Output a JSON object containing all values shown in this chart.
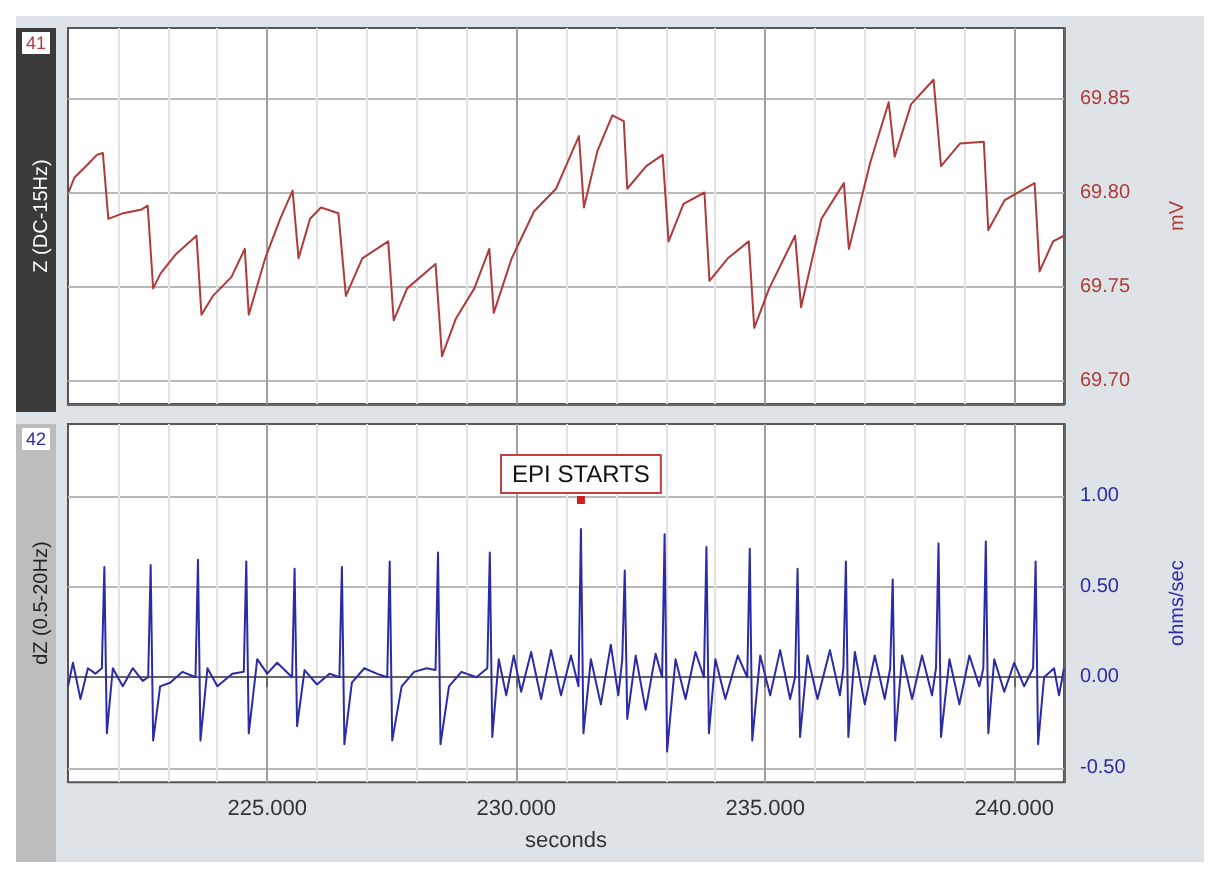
{
  "chart_data": [
    {
      "type": "line",
      "ylabel": "Z (DC-15Hz)",
      "y2label": "mV",
      "annotations": [
        "41"
      ],
      "tick_labels": "y",
      "grid": true,
      "marker": "none",
      "line_style": "solid",
      "xlim": [
        221,
        241
      ],
      "xticks": [
        {
          "value": 222,
          "label": null
        },
        {
          "value": 223,
          "label": null
        },
        {
          "value": 224,
          "label": null
        },
        225,
        {
          "value": 226,
          "label": null
        },
        {
          "value": 227,
          "label": null
        },
        {
          "value": 228,
          "label": null
        },
        {
          "value": 229,
          "label": null
        },
        230,
        {
          "value": 231,
          "label": null
        },
        {
          "value": 232,
          "label": null
        },
        {
          "value": 233,
          "label": null
        },
        {
          "value": 234,
          "label": null
        },
        235,
        {
          "value": 236,
          "label": null
        },
        {
          "value": 237,
          "label": null
        },
        {
          "value": 238,
          "label": null
        },
        {
          "value": 239,
          "label": null
        },
        240
      ],
      "ylim": [
        69.6875,
        69.8875
      ],
      "yticks": [
        {
          "value": 69.7,
          "label": "69.70"
        },
        {
          "value": 69.75,
          "label": "69.75"
        },
        {
          "value": 69.8,
          "label": "69.80"
        },
        {
          "value": 69.85,
          "label": "69.85"
        }
      ],
      "series": [
        {
          "color": "#b03a3a",
          "x": [
            221.01,
            221.13,
            221.36,
            221.58,
            221.7,
            221.81,
            222.11,
            222.48,
            222.6,
            222.71,
            222.86,
            223.16,
            223.58,
            223.68,
            223.91,
            224.28,
            224.55,
            224.63,
            224.96,
            225.26,
            225.51,
            225.63,
            225.86,
            226.08,
            226.43,
            226.58,
            226.91,
            227.43,
            227.54,
            227.81,
            228.38,
            228.51,
            228.79,
            229.16,
            229.46,
            229.55,
            229.91,
            230.36,
            230.8,
            231.03,
            231.26,
            231.36,
            231.63,
            231.93,
            232.16,
            232.23,
            232.61,
            232.94,
            233.06,
            233.36,
            233.78,
            233.88,
            234.25,
            234.67,
            234.78,
            235.08,
            235.6,
            235.72,
            236.13,
            236.58,
            236.68,
            237.11,
            237.48,
            237.6,
            237.93,
            238.38,
            238.53,
            238.91,
            239.39,
            239.48,
            239.81,
            240.41,
            240.51,
            240.78,
            241.0
          ],
          "values": [
            69.8,
            69.808,
            69.814,
            69.82,
            69.821,
            69.786,
            69.789,
            69.791,
            69.793,
            69.749,
            69.757,
            69.767,
            69.777,
            69.735,
            69.745,
            69.755,
            69.77,
            69.735,
            69.765,
            69.786,
            69.801,
            69.765,
            69.786,
            69.792,
            69.789,
            69.745,
            69.765,
            69.774,
            69.732,
            69.749,
            69.762,
            69.713,
            69.733,
            69.749,
            69.77,
            69.736,
            69.765,
            69.79,
            69.802,
            69.816,
            69.83,
            69.792,
            69.822,
            69.841,
            69.838,
            69.802,
            69.814,
            69.82,
            69.774,
            69.794,
            69.8,
            69.753,
            69.765,
            69.774,
            69.728,
            69.749,
            69.777,
            69.739,
            69.786,
            69.805,
            69.77,
            69.816,
            69.848,
            69.819,
            69.847,
            69.86,
            69.814,
            69.826,
            69.827,
            69.78,
            69.796,
            69.805,
            69.758,
            69.774,
            69.777
          ]
        }
      ]
    },
    {
      "type": "line",
      "ylabel": "dZ (0.5-20Hz)",
      "y2label": "ohms/sec",
      "xlabel": "seconds",
      "annotations": [
        "42",
        {
          "text": "EPI STARTS",
          "x": 231.3,
          "y": 0.98
        }
      ],
      "grid": true,
      "marker": "none",
      "line_style": "solid",
      "xlim": [
        221,
        241
      ],
      "xticks": [
        {
          "value": 222,
          "label": null
        },
        {
          "value": 223,
          "label": null
        },
        {
          "value": 224,
          "label": null
        },
        {
          "value": 225,
          "label": "225.000"
        },
        {
          "value": 226,
          "label": null
        },
        {
          "value": 227,
          "label": null
        },
        {
          "value": 228,
          "label": null
        },
        {
          "value": 229,
          "label": null
        },
        {
          "value": 230,
          "label": "230.000"
        },
        {
          "value": 231,
          "label": null
        },
        {
          "value": 232,
          "label": null
        },
        {
          "value": 233,
          "label": null
        },
        {
          "value": 234,
          "label": null
        },
        {
          "value": 235,
          "label": "235.000"
        },
        {
          "value": 236,
          "label": null
        },
        {
          "value": 237,
          "label": null
        },
        {
          "value": 238,
          "label": null
        },
        {
          "value": 239,
          "label": null
        },
        {
          "value": 240,
          "label": "240.000"
        }
      ],
      "ylim": [
        -0.58,
        1.4
      ],
      "yticks": [
        {
          "value": -0.5,
          "label": "-0.50"
        },
        {
          "value": 0,
          "label": "0.00"
        },
        {
          "value": 0.5,
          "label": "0.50"
        },
        {
          "value": 1,
          "label": "1.00"
        }
      ],
      "series": [
        {
          "color": "#2b2ba8",
          "x": [
            221.0,
            221.1,
            221.25,
            221.4,
            221.55,
            221.68,
            221.73,
            221.78,
            221.9,
            222.1,
            222.3,
            222.5,
            222.61,
            222.66,
            222.71,
            222.85,
            223.05,
            223.3,
            223.56,
            223.61,
            223.66,
            223.8,
            224.0,
            224.3,
            224.53,
            224.58,
            224.63,
            224.8,
            225.0,
            225.2,
            225.5,
            225.55,
            225.6,
            225.75,
            226.0,
            226.25,
            226.45,
            226.5,
            226.55,
            226.7,
            226.95,
            227.2,
            227.41,
            227.46,
            227.51,
            227.7,
            227.95,
            228.2,
            228.38,
            228.43,
            228.48,
            228.65,
            228.9,
            229.2,
            229.42,
            229.47,
            229.52,
            229.65,
            229.8,
            229.95,
            230.1,
            230.3,
            230.5,
            230.7,
            230.9,
            231.1,
            231.25,
            231.3,
            231.35,
            231.5,
            231.7,
            231.9,
            232.05,
            232.13,
            232.18,
            232.23,
            232.4,
            232.6,
            232.8,
            232.93,
            232.98,
            233.03,
            233.2,
            233.4,
            233.6,
            233.77,
            233.82,
            233.87,
            234.0,
            234.2,
            234.45,
            234.64,
            234.69,
            234.74,
            234.9,
            235.1,
            235.3,
            235.5,
            235.6,
            235.65,
            235.7,
            235.85,
            236.05,
            236.3,
            236.5,
            236.57,
            236.62,
            236.67,
            236.8,
            237.0,
            237.2,
            237.4,
            237.51,
            237.56,
            237.61,
            237.75,
            237.95,
            238.15,
            238.35,
            238.43,
            238.48,
            238.53,
            238.7,
            238.9,
            239.1,
            239.3,
            239.38,
            239.43,
            239.48,
            239.6,
            239.8,
            240.0,
            240.2,
            240.38,
            240.43,
            240.48,
            240.6,
            240.8,
            240.9,
            241.0
          ],
          "values": [
            -0.05,
            0.08,
            -0.12,
            0.05,
            0.02,
            0.05,
            0.61,
            -0.31,
            0.05,
            -0.05,
            0.05,
            -0.02,
            0.0,
            0.62,
            -0.35,
            -0.05,
            -0.03,
            0.03,
            0.0,
            0.65,
            -0.35,
            0.05,
            -0.05,
            0.02,
            0.03,
            0.64,
            -0.31,
            0.1,
            0.02,
            0.08,
            0.0,
            0.6,
            -0.27,
            0.04,
            -0.04,
            0.02,
            0.0,
            0.61,
            -0.37,
            -0.03,
            0.05,
            0.02,
            0.0,
            0.64,
            -0.35,
            -0.05,
            0.03,
            0.05,
            0.04,
            0.69,
            -0.37,
            -0.05,
            0.03,
            0.0,
            0.05,
            0.69,
            -0.33,
            0.1,
            -0.1,
            0.12,
            -0.08,
            0.14,
            -0.12,
            0.15,
            -0.1,
            0.12,
            -0.05,
            0.82,
            -0.31,
            0.1,
            -0.15,
            0.18,
            -0.1,
            0.1,
            0.59,
            -0.23,
            0.12,
            -0.18,
            0.13,
            0.0,
            0.79,
            -0.41,
            0.1,
            -0.12,
            0.14,
            0.0,
            0.72,
            -0.31,
            0.1,
            -0.12,
            0.12,
            0.0,
            0.71,
            -0.35,
            0.12,
            -0.1,
            0.15,
            -0.12,
            0.0,
            0.6,
            -0.33,
            0.12,
            -0.12,
            0.15,
            -0.1,
            0.05,
            0.64,
            -0.33,
            0.14,
            -0.15,
            0.12,
            -0.12,
            0.05,
            0.54,
            -0.35,
            0.12,
            -0.12,
            0.12,
            -0.1,
            0.05,
            0.74,
            -0.33,
            0.1,
            -0.15,
            0.12,
            -0.05,
            0.05,
            0.75,
            -0.31,
            0.1,
            -0.08,
            0.08,
            -0.05,
            0.05,
            0.64,
            -0.37,
            0.0,
            0.05,
            -0.1,
            0.05
          ]
        }
      ]
    }
  ]
}
